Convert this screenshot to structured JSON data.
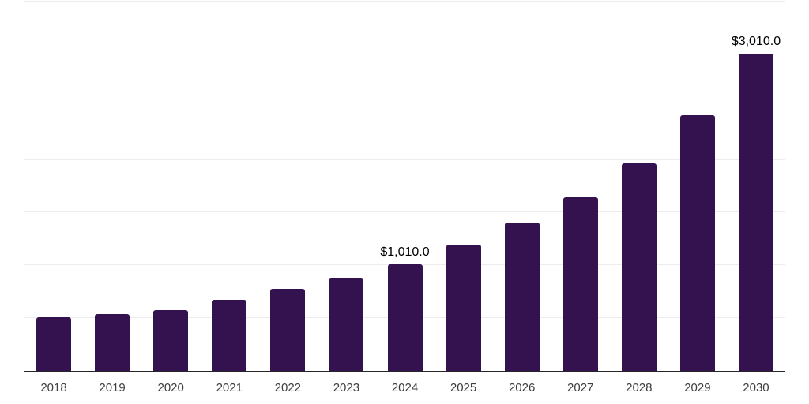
{
  "chart_data": {
    "type": "bar",
    "title": "",
    "xlabel": "",
    "ylabel": "",
    "categories": [
      "2018",
      "2019",
      "2020",
      "2021",
      "2022",
      "2023",
      "2024",
      "2025",
      "2026",
      "2027",
      "2028",
      "2029",
      "2030"
    ],
    "values": [
      505,
      540,
      575,
      675,
      780,
      880,
      1010,
      1200,
      1405,
      1645,
      1970,
      2425,
      3010
    ],
    "annotations": [
      {
        "category": "2024",
        "text": "$1,010.0"
      },
      {
        "category": "2030",
        "text": "$3,010.0"
      }
    ],
    "ylim": [
      0,
      3500
    ],
    "gridline_step": 500,
    "grid": true,
    "legend": false,
    "y_tick_labels_visible": false,
    "colors": {
      "bar": "#34114f",
      "gridline": "#ececec",
      "axis_line": "#262626",
      "tick_label": "#3d3d3d",
      "value_label": "#000000",
      "background": "#ffffff"
    }
  }
}
